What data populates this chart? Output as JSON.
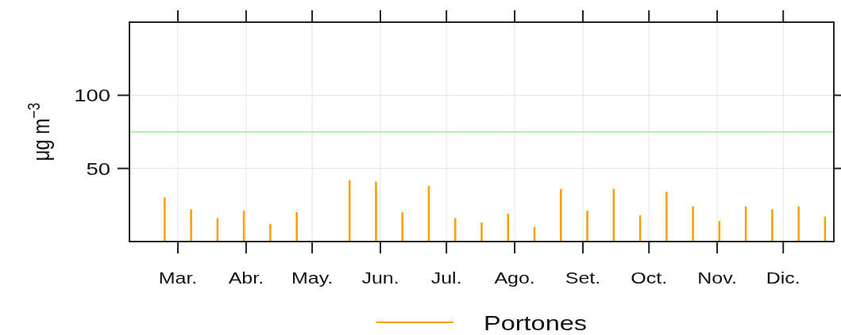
{
  "chart_data": {
    "type": "bar",
    "ylabel": "μg m$^{−3}$",
    "x": [
      "--02-23",
      "--03-07",
      "--03-19",
      "--03-31",
      "--04-12",
      "--04-24",
      "--05-18",
      "--05-30",
      "--06-11",
      "--06-23",
      "--07-05",
      "--07-17",
      "--07-29",
      "--08-10",
      "--08-22",
      "--09-03",
      "--09-15",
      "--09-27",
      "--10-09",
      "--10-21",
      "--11-02",
      "--11-14",
      "--11-26",
      "--12-08",
      "--12-20"
    ],
    "series": [
      {
        "name": "Portones",
        "color": "#f5a000",
        "values": [
          30,
          22,
          16,
          21,
          12,
          20,
          42,
          41,
          20,
          38,
          16,
          13,
          19,
          10,
          36,
          21,
          36,
          18,
          34,
          24,
          14,
          24,
          22,
          24,
          17
        ]
      }
    ],
    "xlim": [
      "--02-07",
      "--12-24"
    ],
    "xticks": [
      {
        "value": "--03-01",
        "label": "Mar."
      },
      {
        "value": "--04-01",
        "label": "Abr."
      },
      {
        "value": "--05-01",
        "label": "May."
      },
      {
        "value": "--06-01",
        "label": "Jun."
      },
      {
        "value": "--07-01",
        "label": "Jul."
      },
      {
        "value": "--08-01",
        "label": "Ago."
      },
      {
        "value": "--09-01",
        "label": "Set."
      },
      {
        "value": "--10-01",
        "label": "Oct."
      },
      {
        "value": "--11-01",
        "label": "Nov."
      },
      {
        "value": "--12-01",
        "label": "Dic."
      }
    ],
    "ylim": [
      0,
      150
    ],
    "yticks": [
      50,
      100
    ],
    "grid": true,
    "legend": "bottom",
    "ref_lines": [
      {
        "axis": "y",
        "value": 75,
        "color": "#90ee90"
      }
    ]
  }
}
